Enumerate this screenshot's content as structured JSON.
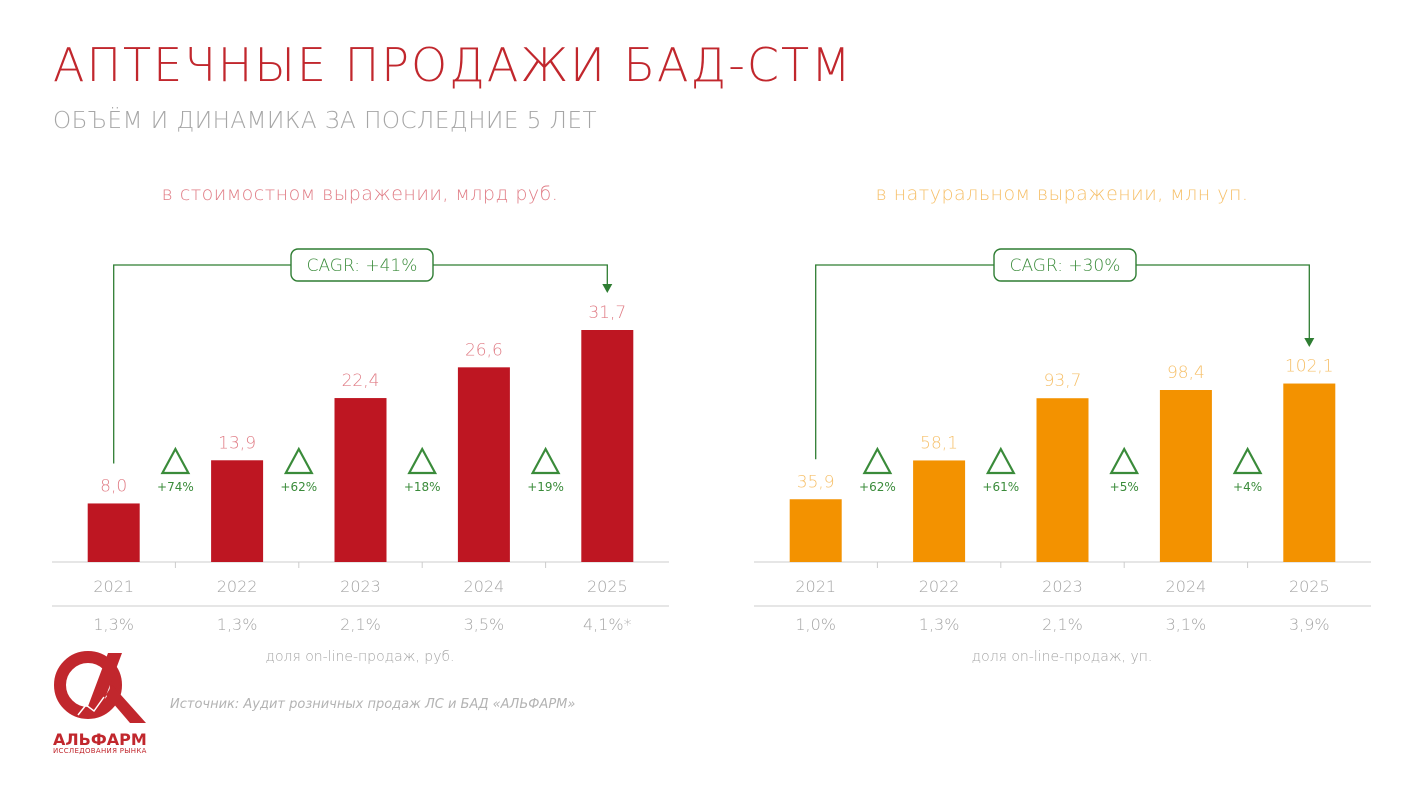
{
  "header": {
    "title": "АПТЕЧНЫЕ ПРОДАЖИ БАД-СТМ",
    "subtitle": "ОБЪЁМ И ДИНАМИКА ЗА ПОСЛЕДНИЕ 5 ЛЕТ"
  },
  "colors": {
    "title": "#c1272d",
    "subtitle": "#a6a6a6",
    "value_bars": "#be1622",
    "unit_bars": "#f39200",
    "value_heading": "#e07c85",
    "unit_heading": "#f6c06a",
    "growth": "#3a8b3a",
    "cagr": "#2e7d32",
    "axis": "#cccccc",
    "muted": "#a6a6a6"
  },
  "chart_data": [
    {
      "type": "bar",
      "title": "в стоимостном выражении, млрд руб.",
      "categories": [
        "2021",
        "2022",
        "2023",
        "2024",
        "2025"
      ],
      "values": [
        8.0,
        13.9,
        22.4,
        26.6,
        31.7
      ],
      "value_labels": [
        "8,0",
        "13,9",
        "22,4",
        "26,6",
        "31,7"
      ],
      "growth": [
        "+74%",
        "+62%",
        "+18%",
        "+19%"
      ],
      "cagr": "CAGR: +41%",
      "online_share": [
        "1,3%",
        "1,3%",
        "2,1%",
        "3,5%",
        "4,1%*"
      ],
      "online_share_label": "доля on-line-продаж, руб.",
      "ylim": [
        0,
        35
      ]
    },
    {
      "type": "bar",
      "title": "в натуральном выражении, млн уп.",
      "categories": [
        "2021",
        "2022",
        "2023",
        "2024",
        "2025"
      ],
      "values": [
        35.9,
        58.1,
        93.7,
        98.4,
        102.1
      ],
      "value_labels": [
        "35,9",
        "58,1",
        "93,7",
        "98,4",
        "102,1"
      ],
      "growth": [
        "+62%",
        "+61%",
        "+5%",
        "+4%"
      ],
      "cagr": "CAGR: +30%",
      "online_share": [
        "1,0%",
        "1,3%",
        "2,1%",
        "3,1%",
        "3,9%"
      ],
      "online_share_label": "доля on-line-продаж, уп.",
      "ylim": [
        0,
        112
      ]
    }
  ],
  "footer": {
    "source": "Источник: Аудит розничных продаж ЛС и БАД «АЛЬФАРМ»",
    "logo_name": "АЛЬФАРМ",
    "logo_tagline": "ИССЛЕДОВАНИЯ РЫНКА"
  }
}
